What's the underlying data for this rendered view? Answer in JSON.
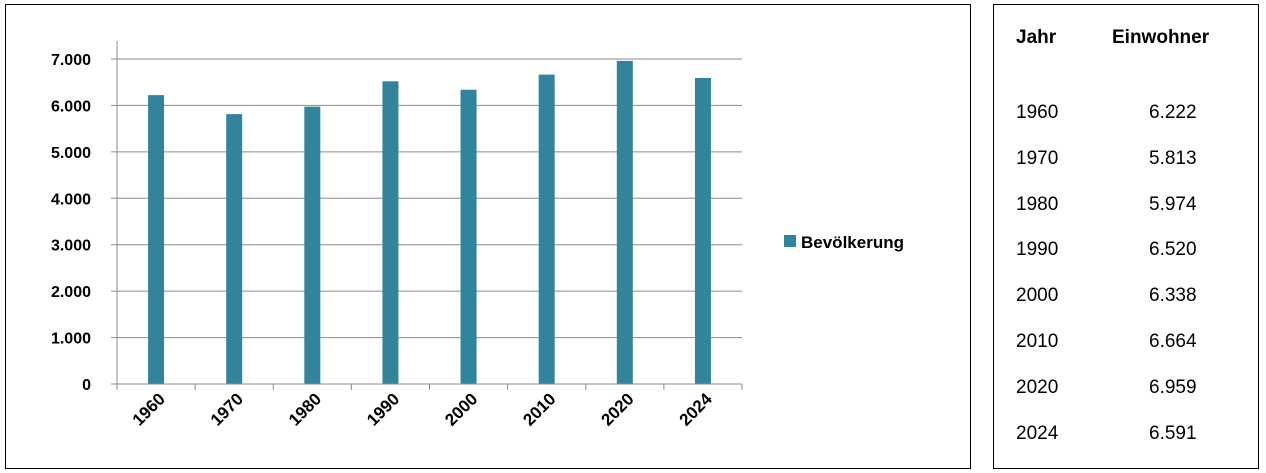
{
  "chart_data": {
    "type": "bar",
    "categories": [
      "1960",
      "1970",
      "1980",
      "1990",
      "2000",
      "2010",
      "2020",
      "2024"
    ],
    "series": [
      {
        "name": "Bevölkerung",
        "values": [
          6222,
          5813,
          5974,
          6520,
          6338,
          6664,
          6959,
          6591
        ],
        "color": "#31849b"
      }
    ],
    "ylim": [
      0,
      7000
    ],
    "yticks": [
      0,
      1000,
      2000,
      3000,
      4000,
      5000,
      6000,
      7000
    ],
    "ytick_labels": [
      "0",
      "1.000",
      "2.000",
      "3.000",
      "4.000",
      "5.000",
      "6.000",
      "7.000"
    ],
    "grid": true,
    "legend_position": "right"
  },
  "table": {
    "headers": [
      "Jahr",
      "Einwohner"
    ],
    "rows": [
      [
        "1960",
        "6.222"
      ],
      [
        "1970",
        "5.813"
      ],
      [
        "1980",
        "5.974"
      ],
      [
        "1990",
        "6.520"
      ],
      [
        "2000",
        "6.338"
      ],
      [
        "2010",
        "6.664"
      ],
      [
        "2020",
        "6.959"
      ],
      [
        "2024",
        "6.591"
      ]
    ]
  }
}
